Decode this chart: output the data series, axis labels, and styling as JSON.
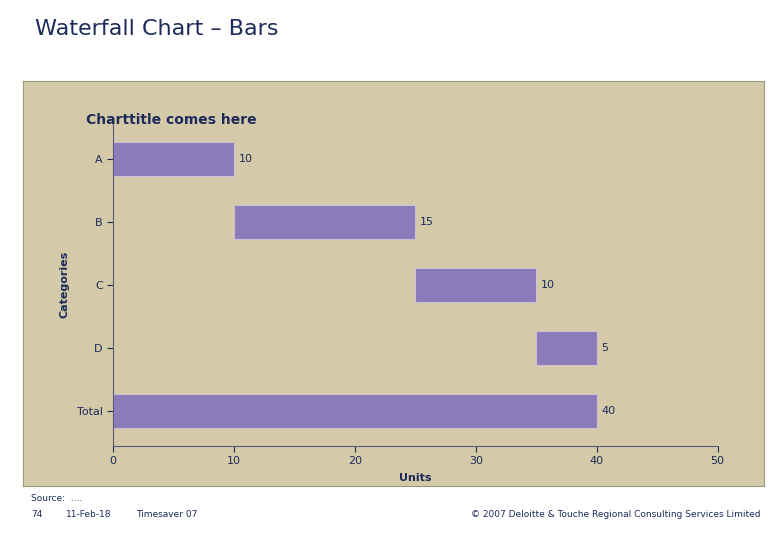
{
  "page_title": "Waterfall Chart – Bars",
  "chart_title": "Charttitle comes here",
  "categories": [
    "A",
    "B",
    "C",
    "D",
    "Total"
  ],
  "left_offsets": [
    0,
    10,
    25,
    35,
    0
  ],
  "bar_widths": [
    10,
    15,
    10,
    5,
    40
  ],
  "bar_labels": [
    "10",
    "15",
    "10",
    "5",
    "40"
  ],
  "bar_color": "#8B7BB8",
  "bar_edge_color": "#C8C0D8",
  "xlabel": "Units",
  "ylabel": "Categories",
  "xlim": [
    0,
    50
  ],
  "xticks": [
    0,
    10,
    20,
    30,
    40,
    50
  ],
  "panel_bg_color": "#D4C9A8",
  "page_bg_color": "#FFFFFF",
  "page_title_color": "#1C2B5A",
  "chart_title_color": "#1C2B5A",
  "axis_label_color": "#1C2B5A",
  "tick_label_color": "#1C2B5A",
  "bar_label_color": "#1C2B5A",
  "spine_color": "#5A5A7A",
  "footer_left": "Source:  ....",
  "footer_left2": "74",
  "footer_date": "11-Feb-18",
  "footer_tool": "Timesaver 07",
  "footer_right": "© 2007 Deloitte & Touche Regional Consulting Services Limited",
  "page_title_fontsize": 16,
  "chart_title_fontsize": 10,
  "axis_label_fontsize": 8,
  "tick_fontsize": 8,
  "bar_label_fontsize": 8,
  "footer_fontsize": 6.5
}
